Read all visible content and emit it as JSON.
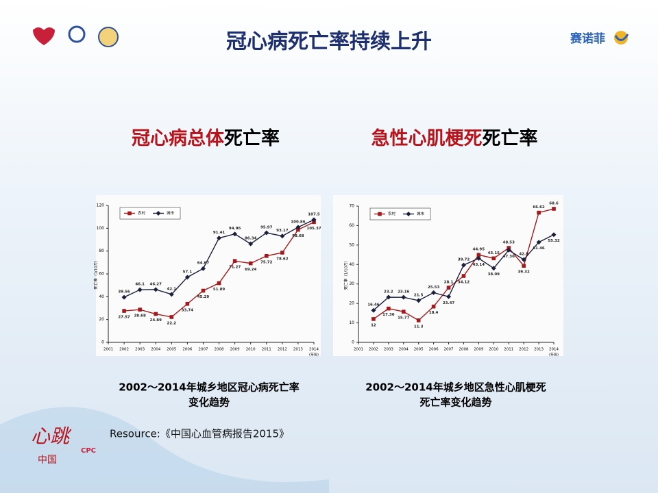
{
  "slide": {
    "title": "冠心病死亡率持续上升",
    "logo_text": "赛诺菲",
    "left_heading": [
      "冠心病总体",
      "死亡率"
    ],
    "right_heading": [
      "急性心肌梗死",
      "死亡率"
    ],
    "left_caption": [
      "2002～2014年城乡地区冠心病死亡率",
      "变化趋势"
    ],
    "right_caption": [
      "2002～2014年城乡地区急性心肌梗死",
      "死亡率变化趋势"
    ],
    "resource": "Resource:《中国心血管病报告2015》",
    "badge": [
      "心跳",
      "中国",
      "CPC"
    ]
  },
  "chart_data": [
    {
      "type": "line",
      "x": [
        2002,
        2003,
        2004,
        2005,
        2006,
        2007,
        2008,
        2009,
        2010,
        2011,
        2012,
        2013,
        2014
      ],
      "xlim": [
        2001,
        2014
      ],
      "xticks": [
        2001,
        2002,
        2003,
        2004,
        2005,
        2006,
        2007,
        2008,
        2009,
        2010,
        2011,
        2012,
        2013,
        2014
      ],
      "xlabel": "(年份)",
      "ylabel": "死亡率（1/10万）",
      "ylim": [
        0,
        120
      ],
      "yticks": [
        0,
        20,
        40,
        60,
        80,
        100,
        120
      ],
      "legend": "upper left",
      "series": [
        {
          "name": "农村",
          "color": "#a3191c",
          "marker": "square",
          "values": [
            27.57,
            28.68,
            24.89,
            22.2,
            33.74,
            45.29,
            51.89,
            71.27,
            69.24,
            75.72,
            78.62,
            98.68,
            105.37
          ]
        },
        {
          "name": "城市",
          "color": "#1b1f3b",
          "marker": "diamond",
          "values": [
            39.56,
            46.1,
            46.27,
            42.1,
            57.1,
            64.67,
            91.41,
            94.96,
            86.34,
            95.97,
            93.17,
            100.86,
            107.5
          ]
        }
      ]
    },
    {
      "type": "line",
      "x": [
        2002,
        2003,
        2004,
        2005,
        2006,
        2007,
        2008,
        2009,
        2010,
        2011,
        2012,
        2013,
        2014
      ],
      "xlim": [
        2001,
        2014
      ],
      "xticks": [
        2001,
        2002,
        2003,
        2004,
        2005,
        2006,
        2007,
        2008,
        2009,
        2010,
        2011,
        2012,
        2013,
        2014
      ],
      "xlabel": "(年份)",
      "ylabel": "死亡率（1/10万）",
      "ylim": [
        0,
        70
      ],
      "yticks": [
        0,
        10,
        20,
        30,
        40,
        50,
        60,
        70
      ],
      "legend": "upper left",
      "series": [
        {
          "name": "农村",
          "color": "#a3191c",
          "marker": "square",
          "values": [
            12,
            17.36,
            15.77,
            11.3,
            18.4,
            28.1,
            34.12,
            44.95,
            43.15,
            48.53,
            39.32,
            66.62,
            68.6
          ]
        },
        {
          "name": "城市",
          "color": "#1b1f3b",
          "marker": "diamond",
          "values": [
            16.46,
            23.2,
            23.16,
            21.5,
            25.53,
            23.47,
            39.72,
            43.14,
            38.09,
            47.36,
            42.5,
            51.46,
            55.32
          ]
        }
      ]
    }
  ]
}
